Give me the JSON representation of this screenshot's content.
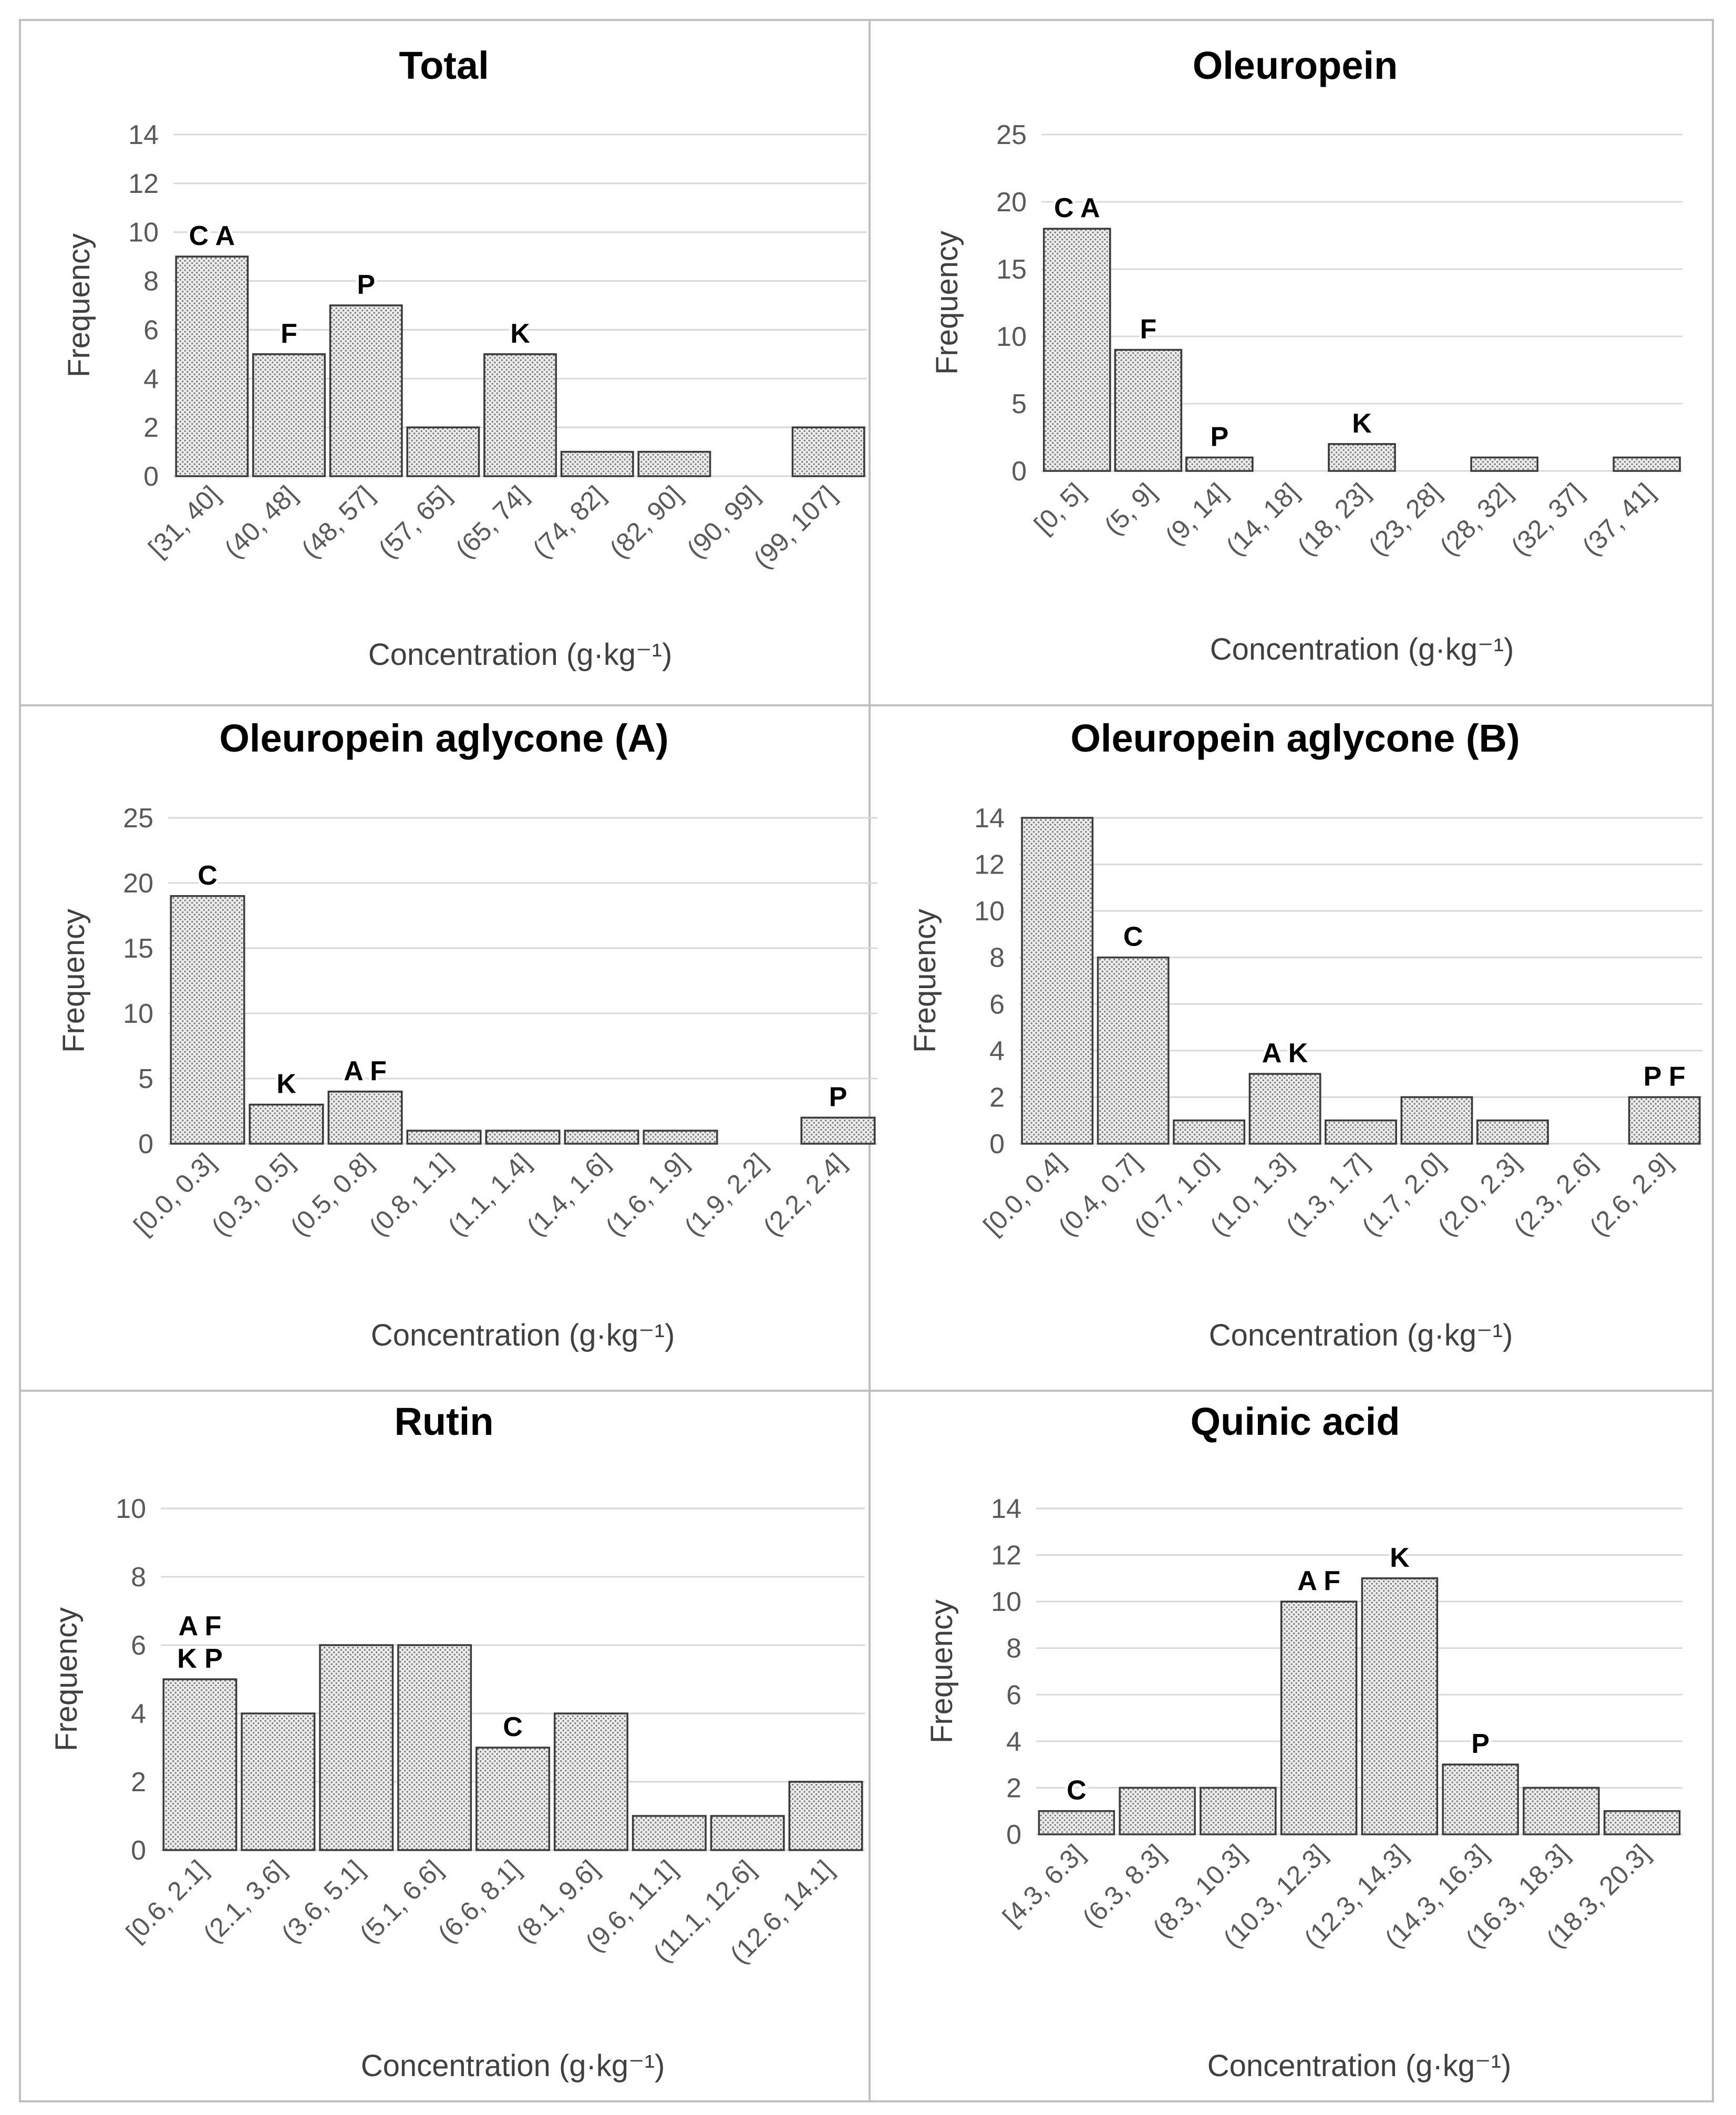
{
  "figure": {
    "xlabel_text": "Concentration (g·kg⁻¹)",
    "ylabel_text": "Frequency"
  },
  "chart_data": [
    {
      "type": "bar",
      "title": "Total",
      "xlabel": "Concentration (g·kg⁻¹)",
      "ylabel": "Frequency",
      "ylim": [
        0,
        14
      ],
      "ystep": 2,
      "categories": [
        "[31, 40]",
        "(40, 48]",
        "(48, 57]",
        "(57, 65]",
        "(65, 74]",
        "(74, 82]",
        "(82, 90]",
        "(90, 99]",
        "(99, 107]"
      ],
      "values": [
        9,
        5,
        7,
        2,
        5,
        1,
        1,
        0,
        2
      ],
      "bar_labels": [
        [
          "C A"
        ],
        [
          "F"
        ],
        [
          "P"
        ],
        [],
        [
          "K"
        ],
        [],
        [],
        [],
        []
      ]
    },
    {
      "type": "bar",
      "title": "Oleuropein",
      "xlabel": "Concentration (g·kg⁻¹)",
      "ylabel": "Frequency",
      "ylim": [
        0,
        25
      ],
      "ystep": 5,
      "categories": [
        "[0, 5]",
        "(5, 9]",
        "(9, 14]",
        "(14, 18]",
        "(18, 23]",
        "(23, 28]",
        "(28, 32]",
        "(32, 37]",
        "(37, 41]"
      ],
      "values": [
        18,
        9,
        1,
        0,
        2,
        0,
        1,
        0,
        1
      ],
      "bar_labels": [
        [
          "C A"
        ],
        [
          "F"
        ],
        [
          "P"
        ],
        [],
        [
          "K"
        ],
        [],
        [],
        [],
        []
      ]
    },
    {
      "type": "bar",
      "title": "Oleuropein aglycone (A)",
      "xlabel": "Concentration (g·kg⁻¹)",
      "ylabel": "Frequency",
      "ylim": [
        0,
        25
      ],
      "ystep": 5,
      "categories": [
        "[0.0, 0.3]",
        "(0.3, 0.5]",
        "(0.5, 0.8]",
        "(0.8, 1.1]",
        "(1.1, 1.4]",
        "(1.4, 1.6]",
        "(1.6, 1.9]",
        "(1.9, 2.2]",
        "(2.2, 2.4]"
      ],
      "values": [
        19,
        3,
        4,
        1,
        1,
        1,
        1,
        0,
        2
      ],
      "bar_labels": [
        [
          "C"
        ],
        [
          "K"
        ],
        [
          "A F"
        ],
        [],
        [],
        [],
        [],
        [],
        [
          "P"
        ]
      ]
    },
    {
      "type": "bar",
      "title": "Oleuropein aglycone (B)",
      "xlabel": "Concentration (g·kg⁻¹)",
      "ylabel": "Frequency",
      "ylim": [
        0,
        14
      ],
      "ystep": 2,
      "categories": [
        "[0.0, 0.4]",
        "(0.4, 0.7]",
        "(0.7, 1.0]",
        "(1.0, 1.3]",
        "(1.3, 1.7]",
        "(1.7, 2.0]",
        "(2.0, 2.3]",
        "(2.3, 2.6]",
        "(2.6, 2.9]"
      ],
      "values": [
        14,
        8,
        1,
        3,
        1,
        2,
        1,
        0,
        2
      ],
      "bar_labels": [
        [],
        [
          "C"
        ],
        [],
        [
          "A K"
        ],
        [],
        [],
        [],
        [],
        [
          "P F"
        ]
      ]
    },
    {
      "type": "bar",
      "title": "Rutin",
      "xlabel": "Concentration (g·kg⁻¹)",
      "ylabel": "Frequency",
      "ylim": [
        0,
        10
      ],
      "ystep": 2,
      "categories": [
        "[0.6, 2.1]",
        "(2.1, 3.6]",
        "(3.6, 5.1]",
        "(5.1, 6.6]",
        "(6.6, 8.1]",
        "(8.1, 9.6]",
        "(9.6, 11.1]",
        "(11.1, 12.6]",
        "(12.6, 14.1]"
      ],
      "values": [
        5,
        4,
        6,
        6,
        3,
        4,
        1,
        1,
        2
      ],
      "bar_labels": [
        [
          "A F",
          "K P"
        ],
        [],
        [],
        [],
        [
          "C"
        ],
        [],
        [],
        [],
        []
      ]
    },
    {
      "type": "bar",
      "title": "Quinic acid",
      "xlabel": "Concentration (g·kg⁻¹)",
      "ylabel": "Frequency",
      "ylim": [
        0,
        14
      ],
      "ystep": 2,
      "categories": [
        "[4.3, 6.3]",
        "(6.3, 8.3]",
        "(8.3, 10.3]",
        "(10.3, 12.3]",
        "(12.3, 14.3]",
        "(14.3, 16.3]",
        "(16.3, 18.3]",
        "(18.3, 20.3]"
      ],
      "values": [
        1,
        2,
        2,
        10,
        11,
        3,
        2,
        1
      ],
      "bar_labels": [
        [
          "C"
        ],
        [],
        [],
        [
          "A F"
        ],
        [
          "K"
        ],
        [
          "P"
        ],
        [],
        []
      ]
    }
  ]
}
